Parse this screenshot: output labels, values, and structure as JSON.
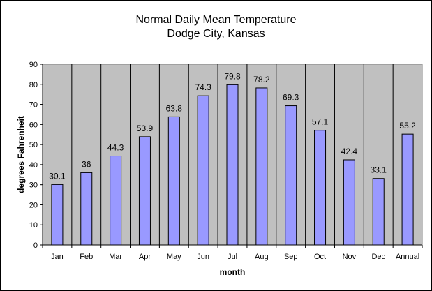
{
  "chart_data": {
    "type": "bar",
    "title": [
      "Normal Daily Mean Temperature",
      "Dodge City, Kansas"
    ],
    "xlabel": "month",
    "ylabel": "degrees Fahrenheit",
    "categories": [
      "Jan",
      "Feb",
      "Mar",
      "Apr",
      "May",
      "Jun",
      "Jul",
      "Aug",
      "Sep",
      "Oct",
      "Nov",
      "Dec",
      "Annual"
    ],
    "values": [
      30.1,
      36,
      44.3,
      53.9,
      63.8,
      74.3,
      79.8,
      78.2,
      69.3,
      57.1,
      42.4,
      33.1,
      55.2
    ],
    "value_labels": [
      "30.1",
      "36",
      "44.3",
      "53.9",
      "63.8",
      "74.3",
      "79.8",
      "78.2",
      "69.3",
      "57.1",
      "42.4",
      "33.1",
      "55.2"
    ],
    "ylim": [
      0,
      90
    ],
    "yticks": [
      0,
      10,
      20,
      30,
      40,
      50,
      60,
      70,
      80,
      90
    ],
    "grid": false,
    "legend": "none",
    "colors": {
      "bar_fill": "#9999ff",
      "bar_stroke": "#000000",
      "plot_background": "#c0c0c0",
      "category_divider": "#000000"
    }
  }
}
